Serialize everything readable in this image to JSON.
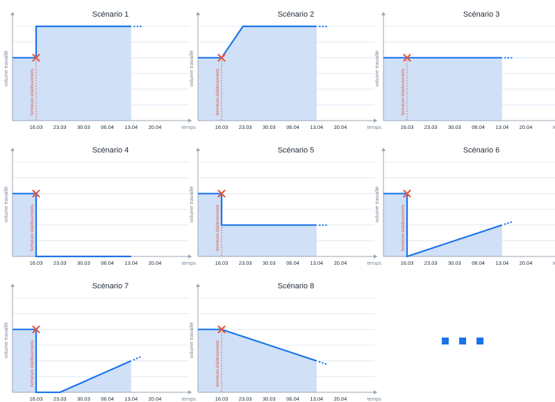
{
  "axis_labels": {
    "y": "volume travaillé",
    "x": "temps",
    "event": "fermeture établissements"
  },
  "colors": {
    "line": "#1a73e8",
    "fill": "#cfe0f7",
    "grid": "#d9e4f2",
    "axis": "#9aa5b1",
    "event": "#e05a47"
  },
  "more_indicator": "ellipsis",
  "chart_data": [
    {
      "type": "area",
      "title": "Scénario 1",
      "xlabel": "temps",
      "ylabel": "volume travaillé",
      "categories": [
        "16.03",
        "23.03",
        "30.03",
        "06.04",
        "13.04",
        "20.04"
      ],
      "event": {
        "x": 0,
        "y": 4,
        "label": "fermeture établissements"
      },
      "ylim": [
        0,
        6
      ],
      "points": [
        [
          -1,
          4
        ],
        [
          0,
          4
        ],
        [
          0,
          6
        ],
        [
          4,
          6
        ]
      ],
      "continues": true
    },
    {
      "type": "area",
      "title": "Scénario 2",
      "xlabel": "temps",
      "ylabel": "volume travaillé",
      "categories": [
        "16.03",
        "23.03",
        "30.03",
        "06.04",
        "13.04",
        "20.04"
      ],
      "event": {
        "x": 0,
        "y": 4,
        "label": "fermeture établissements"
      },
      "ylim": [
        0,
        6
      ],
      "points": [
        [
          -1,
          4
        ],
        [
          0,
          4
        ],
        [
          0.9,
          6
        ],
        [
          4,
          6
        ]
      ],
      "continues": true
    },
    {
      "type": "area",
      "title": "Scénario 3",
      "xlabel": "temps",
      "ylabel": "volume travaillé",
      "categories": [
        "16.03",
        "23.03",
        "30.03",
        "06.04",
        "13.04",
        "20.04"
      ],
      "event": {
        "x": 0,
        "y": 4,
        "label": "fermeture établissements"
      },
      "ylim": [
        0,
        6
      ],
      "points": [
        [
          -1,
          4
        ],
        [
          0,
          4
        ],
        [
          4,
          4
        ]
      ],
      "continues": true
    },
    {
      "type": "area",
      "title": "Scénario 4",
      "xlabel": "temps",
      "ylabel": "volume travaillé",
      "categories": [
        "16.03",
        "23.03",
        "30.03",
        "06.04",
        "13.04",
        "20.04"
      ],
      "event": {
        "x": 0,
        "y": 4,
        "label": "fermeture établissements"
      },
      "ylim": [
        0,
        6
      ],
      "points": [
        [
          -1,
          4
        ],
        [
          0,
          4
        ],
        [
          0,
          0
        ],
        [
          4,
          0
        ]
      ],
      "continues": false
    },
    {
      "type": "area",
      "title": "Scénario 5",
      "xlabel": "temps",
      "ylabel": "volume travaillé",
      "categories": [
        "16.03",
        "23.03",
        "30.03",
        "06.04",
        "13.04",
        "20.04"
      ],
      "event": {
        "x": 0,
        "y": 4,
        "label": "fermeture établissements"
      },
      "ylim": [
        0,
        6
      ],
      "points": [
        [
          -1,
          4
        ],
        [
          0,
          4
        ],
        [
          0,
          2
        ],
        [
          4,
          2
        ]
      ],
      "continues": true
    },
    {
      "type": "area",
      "title": "Scénario 6",
      "xlabel": "temps",
      "ylabel": "volume travaillé",
      "categories": [
        "16.03",
        "23.03",
        "30.03",
        "06.04",
        "13.04",
        "20.04"
      ],
      "event": {
        "x": 0,
        "y": 4,
        "label": "fermeture établissements"
      },
      "ylim": [
        0,
        6
      ],
      "points": [
        [
          -1,
          4
        ],
        [
          0,
          4
        ],
        [
          0,
          0
        ],
        [
          4,
          2
        ]
      ],
      "continues": true
    },
    {
      "type": "area",
      "title": "Scénario 7",
      "xlabel": "temps",
      "ylabel": "volume travaillé",
      "categories": [
        "16.03",
        "23.03",
        "30.03",
        "06.04",
        "13.04",
        "20.04"
      ],
      "event": {
        "x": 0,
        "y": 4,
        "label": "fermeture établissements"
      },
      "ylim": [
        0,
        6
      ],
      "points": [
        [
          -1,
          4
        ],
        [
          0,
          4
        ],
        [
          0,
          0
        ],
        [
          1,
          0
        ],
        [
          4,
          2
        ]
      ],
      "continues": true
    },
    {
      "type": "area",
      "title": "Scénario 8",
      "xlabel": "temps",
      "ylabel": "volume travaillé",
      "categories": [
        "16.03",
        "23.03",
        "30.03",
        "06.04",
        "13.04",
        "20.04"
      ],
      "event": {
        "x": 0,
        "y": 4,
        "label": "fermeture établissements"
      },
      "ylim": [
        0,
        6
      ],
      "points": [
        [
          -1,
          4
        ],
        [
          0,
          4
        ],
        [
          4,
          2
        ]
      ],
      "continues": true
    }
  ]
}
